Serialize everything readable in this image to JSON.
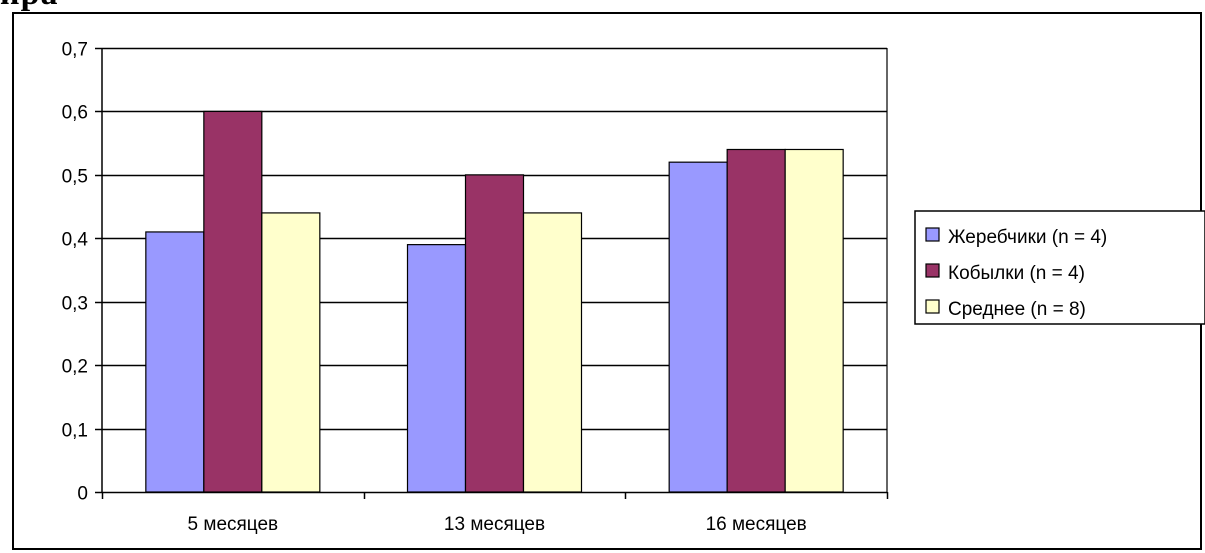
{
  "page": {
    "cut_title": "ира"
  },
  "chart_data": {
    "type": "bar",
    "categories": [
      "5 месяцев",
      "13 месяцев",
      "16 месяцев"
    ],
    "series": [
      {
        "name": "Жеребчики (n = 4)",
        "values": [
          0.41,
          0.39,
          0.52
        ],
        "color": "#9999ff"
      },
      {
        "name": "Кобылки (n = 4)",
        "values": [
          0.6,
          0.5,
          0.54
        ],
        "color": "#993366"
      },
      {
        "name": "Среднее (n = 8)",
        "values": [
          0.44,
          0.44,
          0.54
        ],
        "color": "#ffffcc"
      }
    ],
    "yticks": [
      "0",
      "0,1",
      "0,2",
      "0,3",
      "0,4",
      "0,5",
      "0,6",
      "0,7"
    ],
    "ylim": [
      0,
      0.7
    ],
    "ystep": 0.1,
    "grid": true,
    "legend_position": "right",
    "title": "",
    "xlabel": "",
    "ylabel": ""
  }
}
